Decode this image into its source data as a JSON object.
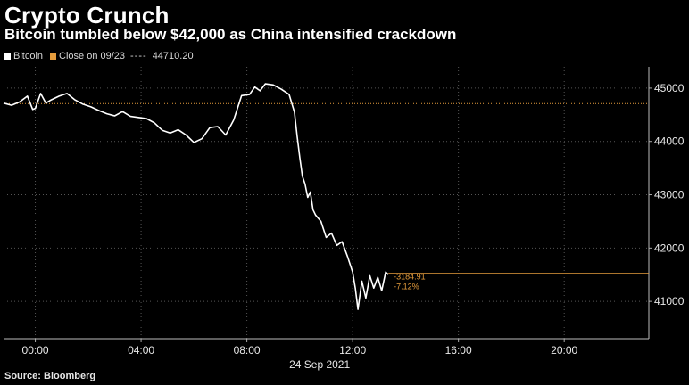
{
  "title": "Crypto Crunch",
  "subtitle": "Bitcoin tumbled below $42,000 as China intensified crackdown",
  "source": "Source: Bloomberg",
  "legend": {
    "series_label": "Bitcoin",
    "close_label": "Close on 09/23",
    "close_value_text": "44710.20"
  },
  "annotations": {
    "change_abs": "-3184.91",
    "change_pct": "-7.12%"
  },
  "colors": {
    "background": "#000000",
    "series": "#ffffff",
    "close_line": "#e59c3c",
    "grid": "#555555"
  },
  "chart_data": {
    "type": "line",
    "x_label": "24 Sep 2021",
    "x_ticks": [
      "00:00",
      "04:00",
      "08:00",
      "12:00",
      "16:00",
      "20:00"
    ],
    "x_tick_values": [
      0,
      4,
      8,
      12,
      16,
      20
    ],
    "xlim": [
      -1.2,
      23.2
    ],
    "y_ticks": [
      41000,
      42000,
      43000,
      44000,
      45000
    ],
    "ylim": [
      40300,
      45400
    ],
    "grid": true,
    "legend_position": "top-left",
    "reference_line": {
      "name": "Close on 09/23",
      "value": 44710.2
    },
    "last_value_line": 41525,
    "series": [
      {
        "name": "Bitcoin",
        "x": [
          -1.2,
          -0.9,
          -0.6,
          -0.3,
          -0.1,
          0.0,
          0.2,
          0.4,
          0.6,
          0.9,
          1.2,
          1.5,
          1.8,
          2.1,
          2.4,
          2.7,
          3.0,
          3.3,
          3.6,
          3.9,
          4.2,
          4.5,
          4.8,
          5.1,
          5.4,
          5.7,
          6.0,
          6.3,
          6.6,
          6.9,
          7.2,
          7.5,
          7.8,
          8.1,
          8.3,
          8.5,
          8.7,
          9.0,
          9.3,
          9.6,
          9.8,
          9.9,
          10.0,
          10.1,
          10.2,
          10.3,
          10.4,
          10.5,
          10.6,
          10.8,
          11.0,
          11.2,
          11.4,
          11.6,
          11.8,
          12.0,
          12.1,
          12.2,
          12.35,
          12.5,
          12.65,
          12.8,
          12.95,
          13.1,
          13.25,
          13.35
        ],
        "y": [
          44720,
          44680,
          44740,
          44850,
          44600,
          44620,
          44900,
          44720,
          44780,
          44850,
          44900,
          44780,
          44700,
          44650,
          44580,
          44520,
          44480,
          44560,
          44470,
          44450,
          44430,
          44350,
          44210,
          44160,
          44220,
          44120,
          43980,
          44050,
          44260,
          44280,
          44120,
          44400,
          44860,
          44880,
          45020,
          44950,
          45080,
          45060,
          44980,
          44880,
          44550,
          44100,
          43700,
          43350,
          43200,
          42950,
          43050,
          42720,
          42620,
          42500,
          42200,
          42280,
          42050,
          42120,
          41850,
          41550,
          41250,
          40850,
          41380,
          41060,
          41480,
          41250,
          41450,
          41200,
          41550,
          41500
        ]
      }
    ]
  }
}
